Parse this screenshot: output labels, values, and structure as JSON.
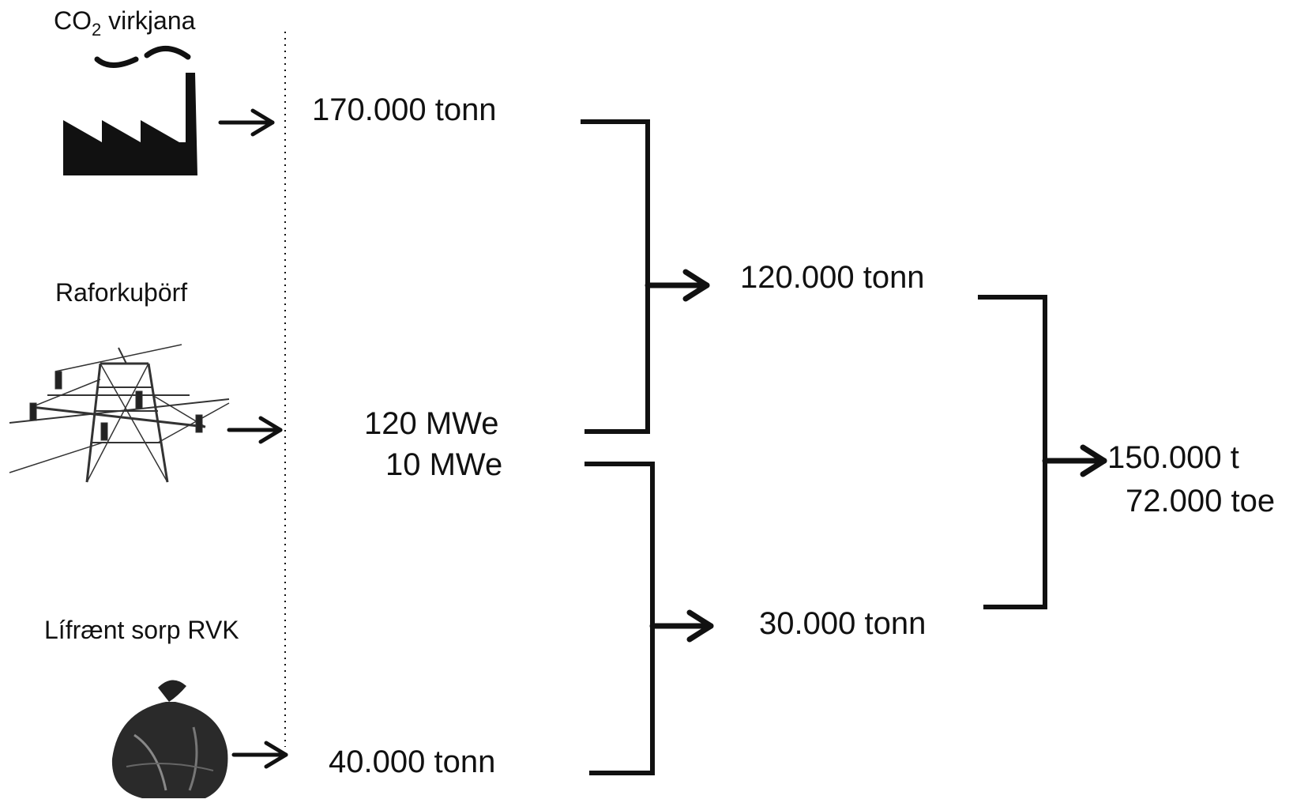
{
  "sources": {
    "co2": {
      "label_main": "CO",
      "label_sub": "2",
      "label_rest": " virkjana",
      "icon": "factory-icon"
    },
    "power": {
      "label": "Raforkuþörf",
      "icon": "power-pylon-icon"
    },
    "waste": {
      "label": "Lífrænt sorp RVK",
      "icon": "trash-bag-icon"
    }
  },
  "stage1": {
    "co2_value": "170.000 tonn",
    "power_value_1": "120 MWe",
    "power_value_2": "10 MWe",
    "waste_value": "40.000 tonn"
  },
  "stage2": {
    "upper_value": "120.000 tonn",
    "lower_value": "30.000 tonn"
  },
  "result": {
    "value_1": "150.000 t",
    "value_2": "72.000 toe"
  }
}
